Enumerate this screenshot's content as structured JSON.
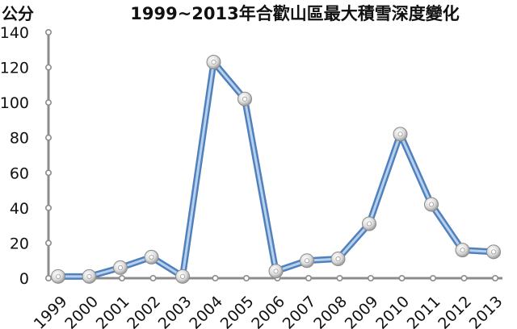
{
  "chart_data": {
    "type": "line",
    "title": "1999~2013年合歡山區最大積雪深度變化",
    "ylabel": "公分",
    "xlabel": "",
    "categories": [
      "1999",
      "2000",
      "2001",
      "2002",
      "2003",
      "2004",
      "2005",
      "2006",
      "2007",
      "2008",
      "2009",
      "2010",
      "2011",
      "2012",
      "2013"
    ],
    "series": [
      {
        "values": [
          1,
          1,
          6,
          12,
          1,
          123,
          102,
          4,
          10,
          11,
          31,
          82,
          42,
          16,
          15
        ]
      }
    ],
    "ylim": [
      0,
      140
    ],
    "yticks": [
      "0",
      "20",
      "40",
      "60",
      "80",
      "100",
      "120",
      "140"
    ],
    "grid": false,
    "legend": "none",
    "colors": {
      "line": "#4f81bd",
      "line_light": "#b9d0ec",
      "axis": "#8c8c8c",
      "marker": "#d6d6d6"
    }
  }
}
